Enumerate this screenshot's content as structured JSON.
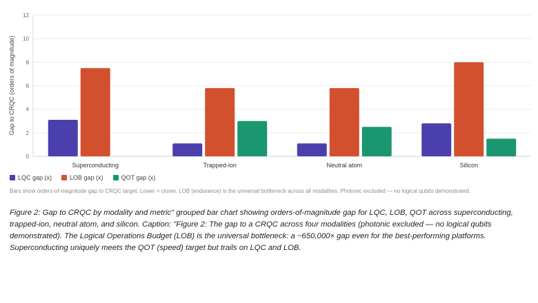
{
  "chart_data": {
    "type": "bar",
    "categories": [
      "Superconducting",
      "Trapped-ion",
      "Neutral atom",
      "Silicon"
    ],
    "series": [
      {
        "name": "LQC gap (x)",
        "color": "#4b3fae",
        "values": [
          3.1,
          1.1,
          1.1,
          2.8
        ]
      },
      {
        "name": "LOB gap (x)",
        "color": "#d2502e",
        "values": [
          7.5,
          5.8,
          5.8,
          8.0
        ]
      },
      {
        "name": "QOT gap (x)",
        "color": "#1a9670",
        "values": [
          0,
          3.0,
          2.5,
          1.5
        ]
      }
    ],
    "ylabel": "Gap to CRQC (orders of magnitude)",
    "ylim": [
      0,
      12
    ],
    "yticks": [
      0,
      2,
      4,
      6,
      8,
      10,
      12
    ],
    "grid": true,
    "legend_position": "bottom-left",
    "note": "Bars show orders-of-magnitude gap to CRQC target. Lower = closer. LOB (endurance) is the universal bottleneck across all modalities. Photonic excluded — no logical qubits demonstrated."
  },
  "caption": "Figure 2: Gap to CRQC by modality and metric\" grouped bar chart showing orders-of-magnitude gap for LQC, LOB, QOT across superconducting, trapped-ion, neutral atom, and silicon. Caption: \"Figure 2: The gap to a CRQC across four modalities (photonic excluded — no logical qubits demonstrated). The Logical Operations Budget (LOB) is the universal bottleneck: a ~650,000× gap even for the best-performing platforms. Superconducting uniquely meets the QOT (speed) target but trails on LQC and LOB."
}
